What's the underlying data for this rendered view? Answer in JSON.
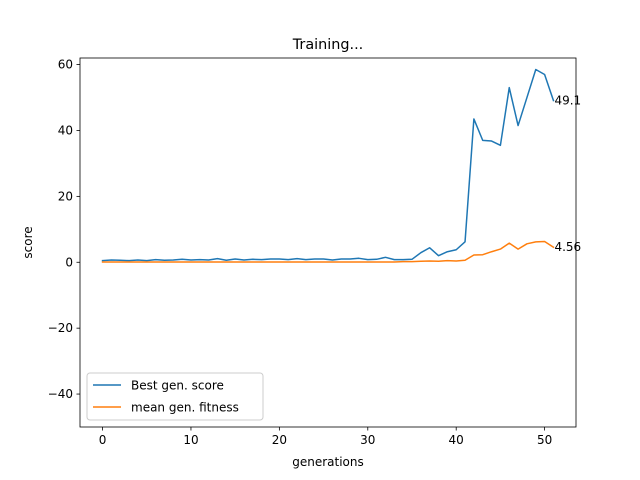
{
  "chart_data": {
    "type": "line",
    "title": "Training...",
    "xlabel": "generations",
    "ylabel": "score",
    "xlim": [
      -2.55,
      53.55
    ],
    "ylim": [
      -50,
      62
    ],
    "xticks": [
      0,
      10,
      20,
      30,
      40,
      50
    ],
    "yticks": [
      -40,
      -20,
      0,
      20,
      40,
      60
    ],
    "grid": false,
    "legend_position": "lower-left",
    "x": [
      0,
      1,
      2,
      3,
      4,
      5,
      6,
      7,
      8,
      9,
      10,
      11,
      12,
      13,
      14,
      15,
      16,
      17,
      18,
      19,
      20,
      21,
      22,
      23,
      24,
      25,
      26,
      27,
      28,
      29,
      30,
      31,
      32,
      33,
      34,
      35,
      36,
      37,
      38,
      39,
      40,
      41,
      42,
      43,
      44,
      45,
      46,
      47,
      48,
      49,
      50,
      51
    ],
    "series": [
      {
        "name": "Best gen. score",
        "color": "#1f77b4",
        "values": [
          0.5,
          0.7,
          0.6,
          0.5,
          0.7,
          0.5,
          0.8,
          0.6,
          0.7,
          0.9,
          0.7,
          0.8,
          0.7,
          1.1,
          0.6,
          1.0,
          0.7,
          0.9,
          0.8,
          1.0,
          1.0,
          0.8,
          1.1,
          0.8,
          1.0,
          1.0,
          0.7,
          1.0,
          1.0,
          1.2,
          0.8,
          0.9,
          1.5,
          0.8,
          0.8,
          0.9,
          2.9,
          4.4,
          2.0,
          3.2,
          3.8,
          6.2,
          43.5,
          37.0,
          36.8,
          35.5,
          53.0,
          41.5,
          50.0,
          58.5,
          57.0,
          49.1
        ],
        "end_label": "49.1"
      },
      {
        "name": "mean gen. fitness",
        "color": "#ff7f0e",
        "values": [
          0.1,
          0.1,
          0.1,
          0.1,
          0.1,
          0.1,
          0.1,
          0.1,
          0.1,
          0.1,
          0.1,
          0.1,
          0.1,
          0.1,
          0.1,
          0.1,
          0.1,
          0.1,
          0.1,
          0.1,
          0.1,
          0.1,
          0.1,
          0.1,
          0.1,
          0.1,
          0.1,
          0.1,
          0.1,
          0.1,
          0.1,
          0.1,
          0.1,
          0.1,
          0.2,
          0.2,
          0.3,
          0.4,
          0.3,
          0.5,
          0.4,
          0.6,
          2.2,
          2.3,
          3.2,
          4.0,
          5.8,
          4.0,
          5.6,
          6.2,
          6.3,
          4.56
        ],
        "end_label": "4.56"
      }
    ]
  }
}
